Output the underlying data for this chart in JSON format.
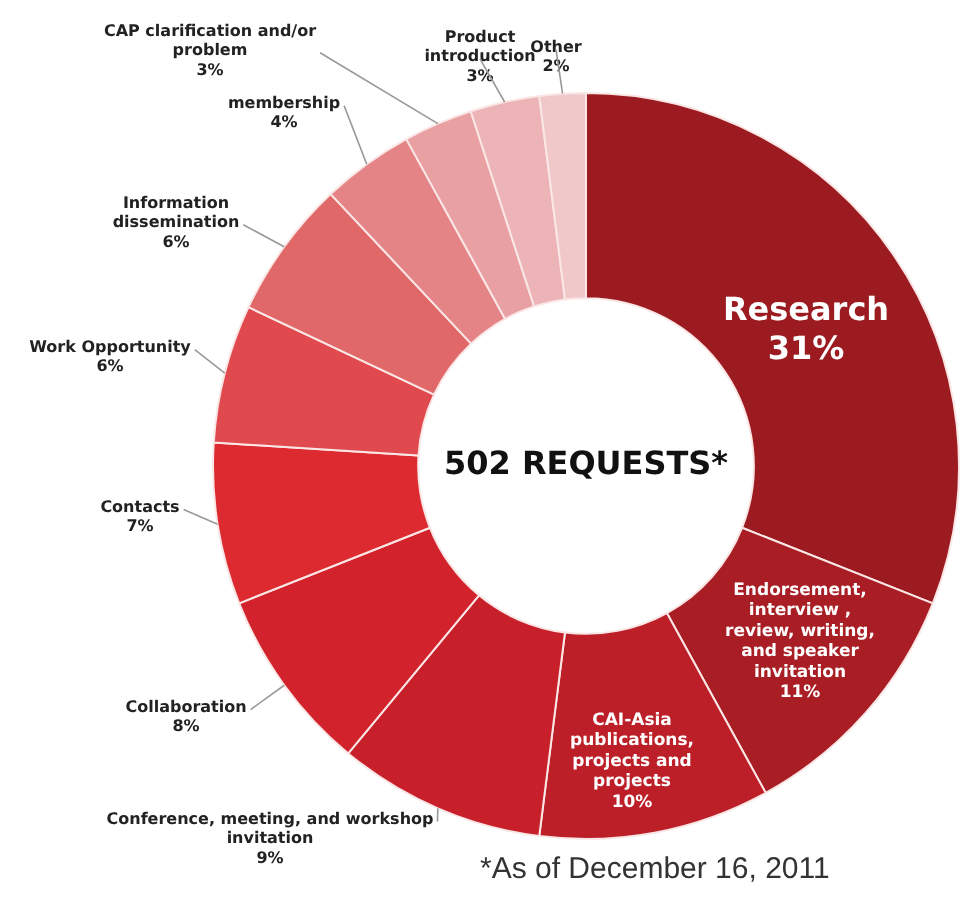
{
  "chart_data": {
    "type": "donut",
    "title": "502 REQUESTS*",
    "categories": [
      "Research",
      "Endorsement, interview , review, writing, and speaker invitation",
      "CAI-Asia publications, projects and projects",
      "Conference, meeting, and workshop invitation",
      "Collaboration",
      "Contacts",
      "Work Opportunity",
      "Information dissemination",
      "membership",
      "CAP clarification and/or problem",
      "Product introduction",
      "Other"
    ],
    "values": [
      31,
      11,
      10,
      9,
      8,
      7,
      6,
      6,
      4,
      3,
      3,
      2
    ],
    "value_labels": [
      "31%",
      "11%",
      "10%",
      "9%",
      "8%",
      "7%",
      "6%",
      "6%",
      "4%",
      "3%",
      "3%",
      "2%"
    ],
    "colors": [
      "#9b1b20",
      "#a81e24",
      "#bc1f27",
      "#c8202a",
      "#d2222c",
      "#dc2a30",
      "#e04a4e",
      "#e06868",
      "#e48486",
      "#e8a0a2",
      "#ecb4b6",
      "#f0c8ca"
    ],
    "legend": false,
    "annotations": [
      "*As of December 16, 2011"
    ]
  }
}
